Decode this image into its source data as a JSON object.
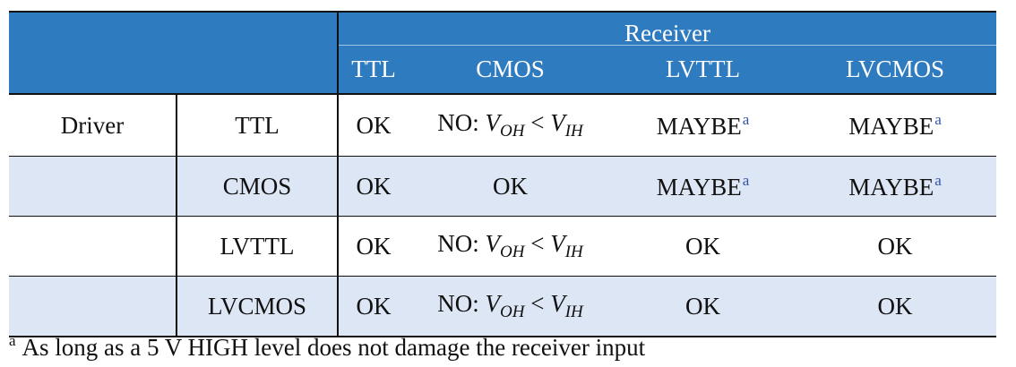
{
  "header": {
    "group_label": "Receiver",
    "columns": [
      "TTL",
      "CMOS",
      "LVTTL",
      "LVCMOS"
    ]
  },
  "row_group_label": "Driver",
  "rows": [
    {
      "driver": "TTL",
      "cells": [
        {
          "text": "OK"
        },
        {
          "prefix": "NO: ",
          "lhs": "V",
          "lhs_sub": "OH",
          "op": " < ",
          "rhs": "V",
          "rhs_sub": "IH"
        },
        {
          "text": "MAYBE",
          "footnote_mark": "a"
        },
        {
          "text": "MAYBE",
          "footnote_mark": "a"
        }
      ]
    },
    {
      "driver": "CMOS",
      "cells": [
        {
          "text": "OK"
        },
        {
          "text": "OK"
        },
        {
          "text": "MAYBE",
          "footnote_mark": "a"
        },
        {
          "text": "MAYBE",
          "footnote_mark": "a"
        }
      ]
    },
    {
      "driver": "LVTTL",
      "cells": [
        {
          "text": "OK"
        },
        {
          "prefix": "NO: ",
          "lhs": "V",
          "lhs_sub": "OH",
          "op": " < ",
          "rhs": "V",
          "rhs_sub": "IH"
        },
        {
          "text": "OK"
        },
        {
          "text": "OK"
        }
      ]
    },
    {
      "driver": "LVCMOS",
      "cells": [
        {
          "text": "OK"
        },
        {
          "prefix": "NO: ",
          "lhs": "V",
          "lhs_sub": "OH",
          "op": " < ",
          "rhs": "V",
          "rhs_sub": "IH"
        },
        {
          "text": "OK"
        },
        {
          "text": "OK"
        }
      ]
    }
  ],
  "footnote": {
    "mark": "a",
    "text": "As long as a 5 V HIGH level does not damage the receiver input"
  },
  "colors": {
    "header_bg": "#2f7bbf",
    "header_text": "#ffffff",
    "stripe_bg": "#dde6f4",
    "footnote_mark_color": "#3552a8"
  }
}
